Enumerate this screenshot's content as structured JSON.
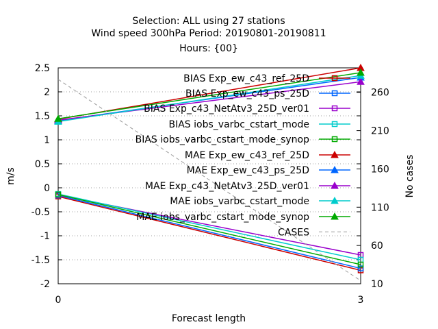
{
  "chart_data": {
    "type": "line",
    "title_lines": [
      "Selection: ALL using    27 stations",
      "Wind speed 300hPa   Period: 20190801-20190811",
      "Hours: {00}"
    ],
    "xlabel": "Forecast length",
    "ylabel": "m/s",
    "y2label": "No cases",
    "x": [
      0,
      3
    ],
    "xticks": [
      "0",
      "3"
    ],
    "xlim": [
      0,
      3
    ],
    "ylim": [
      -2,
      2.5
    ],
    "yticks": [
      "-2",
      "-1.5",
      "-1",
      "-0.5",
      "0",
      "0.5",
      "1",
      "1.5",
      "2",
      "2.5"
    ],
    "y2lim": [
      10,
      292
    ],
    "y2ticks": [
      "10",
      "60",
      "110",
      "160",
      "210",
      "260"
    ],
    "grid": true,
    "legend_position": "top-right",
    "series": [
      {
        "name": "BIAS Exp_ew_c43_ref_25D",
        "values": [
          -0.18,
          -1.72
        ],
        "color": "#cc0000",
        "marker": "square-open",
        "axis": "y1"
      },
      {
        "name": "BIAS Exp_ew_c43_ps_25D",
        "values": [
          -0.16,
          -1.68
        ],
        "color": "#0066ff",
        "marker": "square-open",
        "axis": "y1"
      },
      {
        "name": "BIAS Exp_c43_NetAtv3_25D_ver01",
        "values": [
          -0.15,
          -1.4
        ],
        "color": "#9900cc",
        "marker": "square-open",
        "axis": "y1"
      },
      {
        "name": "BIAS iobs_varbc_cstart_mode",
        "values": [
          -0.13,
          -1.5
        ],
        "color": "#00cccc",
        "marker": "square-open",
        "axis": "y1"
      },
      {
        "name": "BIAS iobs_varbc_cstart_mode_synop",
        "values": [
          -0.14,
          -1.6
        ],
        "color": "#00aa00",
        "marker": "square-open",
        "axis": "y1"
      },
      {
        "name": "MAE Exp_ew_c43_ref_25D",
        "values": [
          1.43,
          2.5
        ],
        "color": "#cc0000",
        "marker": "triangle",
        "axis": "y1"
      },
      {
        "name": "MAE Exp_ew_c43_ps_25D",
        "values": [
          1.4,
          2.3
        ],
        "color": "#0066ff",
        "marker": "triangle",
        "axis": "y1"
      },
      {
        "name": "MAE Exp_c43_NetAtv3_25D_ver01",
        "values": [
          1.41,
          2.21
        ],
        "color": "#9900cc",
        "marker": "triangle",
        "axis": "y1"
      },
      {
        "name": "MAE iobs_varbc_cstart_mode",
        "values": [
          1.38,
          2.34
        ],
        "color": "#00cccc",
        "marker": "triangle",
        "axis": "y1"
      },
      {
        "name": "MAE iobs_varbc_cstart_mode_synop",
        "values": [
          1.44,
          2.4
        ],
        "color": "#00aa00",
        "marker": "triangle",
        "axis": "y1"
      },
      {
        "name": "CASES",
        "values": [
          277,
          14
        ],
        "color": "#999999",
        "marker": "none",
        "dash": true,
        "axis": "y2"
      }
    ]
  }
}
